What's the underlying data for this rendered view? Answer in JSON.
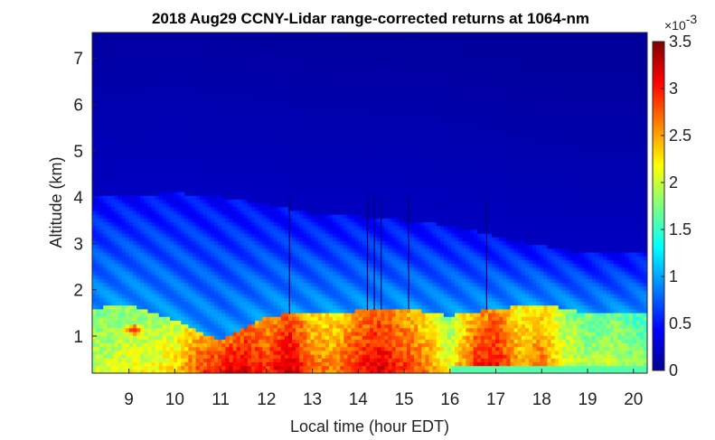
{
  "chart_data": {
    "type": "heatmap",
    "title": "2018 Aug29 CCNY-Lidar range-corrected returns at 1064-nm",
    "xlabel": "Local time (hour EDT)",
    "ylabel": "Altitude (km)",
    "xlim": [
      8.2,
      20.3
    ],
    "ylim": [
      0.2,
      7.55
    ],
    "xticks": [
      "9",
      "10",
      "11",
      "12",
      "13",
      "14",
      "15",
      "16",
      "17",
      "18",
      "19",
      "20"
    ],
    "yticks": [
      "1",
      "2",
      "3",
      "4",
      "5",
      "6",
      "7"
    ],
    "colorbar": {
      "colormap": "jet",
      "range": [
        0,
        0.0035
      ],
      "exponent_label": "×10",
      "exponent_power": "-3",
      "ticks": [
        "0",
        "0.5",
        "1",
        "1.5",
        "2",
        "2.5",
        "3",
        "3.5"
      ]
    },
    "boundary_layer_top_km": [
      {
        "hour": 8.2,
        "km": 1.6
      },
      {
        "hour": 9.0,
        "km": 1.7
      },
      {
        "hour": 10.0,
        "km": 1.35
      },
      {
        "hour": 11.0,
        "km": 0.9
      },
      {
        "hour": 12.0,
        "km": 1.45
      },
      {
        "hour": 13.0,
        "km": 1.5
      },
      {
        "hour": 14.0,
        "km": 1.55
      },
      {
        "hour": 15.0,
        "km": 1.6
      },
      {
        "hour": 16.0,
        "km": 1.45
      },
      {
        "hour": 17.0,
        "km": 1.6
      },
      {
        "hour": 18.0,
        "km": 1.7
      },
      {
        "hour": 19.0,
        "km": 1.5
      },
      {
        "hour": 20.3,
        "km": 1.5
      }
    ],
    "residual_layer_top_km": [
      {
        "hour": 8.2,
        "km": 4.0
      },
      {
        "hour": 10.0,
        "km": 4.1
      },
      {
        "hour": 11.0,
        "km": 4.0
      },
      {
        "hour": 12.0,
        "km": 3.85
      },
      {
        "hour": 13.0,
        "km": 3.65
      },
      {
        "hour": 14.0,
        "km": 3.6
      },
      {
        "hour": 15.0,
        "km": 3.5
      },
      {
        "hour": 16.0,
        "km": 3.4
      },
      {
        "hour": 17.0,
        "km": 3.15
      },
      {
        "hour": 18.0,
        "km": 2.95
      },
      {
        "hour": 19.0,
        "km": 2.8
      },
      {
        "hour": 20.3,
        "km": 2.8
      }
    ],
    "aerosol_peak_value": [
      {
        "hour": 8.5,
        "value": 0.0021
      },
      {
        "hour": 9.0,
        "value": 0.0022
      },
      {
        "hour": 9.5,
        "value": 0.0022
      },
      {
        "hour": 10.0,
        "value": 0.0024
      },
      {
        "hour": 10.5,
        "value": 0.0029
      },
      {
        "hour": 11.0,
        "value": 0.0032
      },
      {
        "hour": 11.5,
        "value": 0.0033
      },
      {
        "hour": 12.0,
        "value": 0.003
      },
      {
        "hour": 12.5,
        "value": 0.0034
      },
      {
        "hour": 13.0,
        "value": 0.0028
      },
      {
        "hour": 13.5,
        "value": 0.0027
      },
      {
        "hour": 14.0,
        "value": 0.0031
      },
      {
        "hour": 14.5,
        "value": 0.0033
      },
      {
        "hour": 15.0,
        "value": 0.003
      },
      {
        "hour": 15.5,
        "value": 0.0027
      },
      {
        "hour": 16.0,
        "value": 0.0022
      },
      {
        "hour": 16.5,
        "value": 0.003
      },
      {
        "hour": 17.0,
        "value": 0.0032
      },
      {
        "hour": 17.5,
        "value": 0.0026
      },
      {
        "hour": 18.0,
        "value": 0.0028
      },
      {
        "hour": 18.5,
        "value": 0.0022
      },
      {
        "hour": 19.0,
        "value": 0.002
      },
      {
        "hour": 19.5,
        "value": 0.0021
      },
      {
        "hour": 20.0,
        "value": 0.0019
      }
    ],
    "local_maximum": {
      "hour": 9.1,
      "km": 1.15
    },
    "vertical_streaks_hours": [
      12.5,
      14.2,
      14.35,
      14.5,
      15.1,
      16.8
    ]
  }
}
